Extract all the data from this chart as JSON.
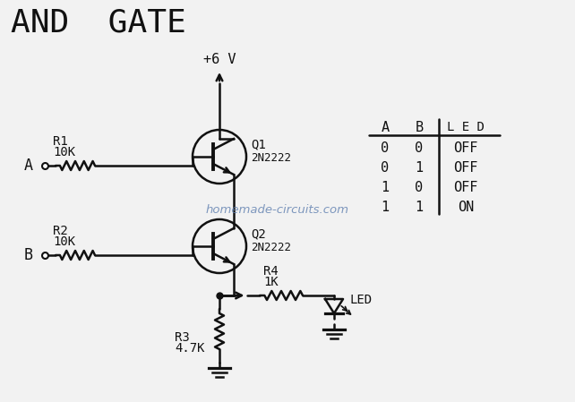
{
  "title": "AND  GATE",
  "title_fontsize": 26,
  "bg_color": "#f2f2f2",
  "line_color": "#111111",
  "watermark": "homemade-circuits.com",
  "watermark_color": "#6080b0",
  "truth_table": {
    "headers": [
      "A",
      "B",
      "L E D"
    ],
    "rows": [
      [
        "0",
        "0",
        "OFF"
      ],
      [
        "0",
        "1",
        "OFF"
      ],
      [
        "1",
        "0",
        "OFF"
      ],
      [
        "1",
        "1",
        "ON"
      ]
    ]
  },
  "vcc_label": "+6 V",
  "q1_label": [
    "Q1",
    "2N2222"
  ],
  "q2_label": [
    "Q2",
    "2N2222"
  ],
  "r1_label": [
    "R1",
    "10K"
  ],
  "r2_label": [
    "R2",
    "10K"
  ],
  "r3_label": [
    "R3",
    "4.7K"
  ],
  "r4_label": [
    "R4",
    "1K"
  ],
  "led_label": "LED"
}
